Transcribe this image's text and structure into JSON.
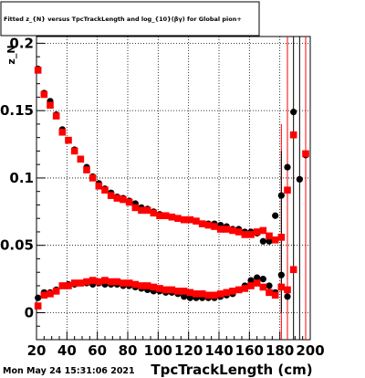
{
  "title": "Fitted  z_{N} versus TpcTrackLength and log_{10}(βγ) for Global pion+",
  "timestamp": "Mon May 24 15:31:06 2021",
  "chart_data": {
    "type": "scatter",
    "xlabel": "TpcTrackLength (cm)",
    "ylabel": "z_N",
    "xlim": [
      20,
      200
    ],
    "ylim": [
      -0.02,
      0.205
    ],
    "x_ticks": [
      "20",
      "40",
      "60",
      "80",
      "100",
      "120",
      "140",
      "160",
      "180",
      "200"
    ],
    "y_ticks": [
      "0",
      "0.05",
      "0.1",
      "0.15",
      "0.2"
    ],
    "x_tick_values": [
      20,
      40,
      60,
      80,
      100,
      120,
      140,
      160,
      180,
      200
    ],
    "y_tick_values": [
      0,
      0.05,
      0.1,
      0.15,
      0.2
    ],
    "grid": true,
    "series": [
      {
        "color": "#000000",
        "points": [
          [
            21,
            0.181
          ],
          [
            25,
            0.163
          ],
          [
            29,
            0.157
          ],
          [
            33,
            0.147
          ],
          [
            37,
            0.136
          ],
          [
            41,
            0.128
          ],
          [
            45,
            0.121
          ],
          [
            49,
            0.114
          ],
          [
            53,
            0.108
          ],
          [
            57,
            0.101
          ],
          [
            61,
            0.096
          ],
          [
            65,
            0.092
          ],
          [
            69,
            0.089
          ],
          [
            73,
            0.086
          ],
          [
            77,
            0.085
          ],
          [
            81,
            0.083
          ],
          [
            85,
            0.081
          ],
          [
            89,
            0.078
          ],
          [
            93,
            0.077
          ],
          [
            97,
            0.075
          ],
          [
            101,
            0.073
          ],
          [
            105,
            0.072
          ],
          [
            109,
            0.071
          ],
          [
            113,
            0.07
          ],
          [
            117,
            0.069
          ],
          [
            121,
            0.069
          ],
          [
            125,
            0.068
          ],
          [
            129,
            0.066
          ],
          [
            133,
            0.066
          ],
          [
            137,
            0.066
          ],
          [
            141,
            0.065
          ],
          [
            145,
            0.064
          ],
          [
            149,
            0.062
          ],
          [
            153,
            0.062
          ],
          [
            157,
            0.06
          ],
          [
            161,
            0.06
          ],
          [
            165,
            0.059
          ],
          [
            169,
            0.053
          ],
          [
            173,
            0.053
          ],
          [
            177,
            0.072
          ],
          [
            181,
            0.087
          ],
          [
            185,
            0.108
          ],
          [
            189,
            0.149
          ],
          [
            193,
            0.099
          ],
          [
            197,
            0.117
          ],
          [
            21,
            0.011
          ],
          [
            25,
            0.015
          ],
          [
            29,
            0.015
          ],
          [
            33,
            0.017
          ],
          [
            37,
            0.02
          ],
          [
            41,
            0.021
          ],
          [
            45,
            0.021
          ],
          [
            49,
            0.022
          ],
          [
            53,
            0.022
          ],
          [
            57,
            0.021
          ],
          [
            61,
            0.022
          ],
          [
            65,
            0.021
          ],
          [
            69,
            0.021
          ],
          [
            73,
            0.021
          ],
          [
            77,
            0.02
          ],
          [
            81,
            0.02
          ],
          [
            85,
            0.019
          ],
          [
            89,
            0.018
          ],
          [
            93,
            0.017
          ],
          [
            97,
            0.016
          ],
          [
            101,
            0.016
          ],
          [
            105,
            0.015
          ],
          [
            109,
            0.015
          ],
          [
            113,
            0.014
          ],
          [
            117,
            0.012
          ],
          [
            121,
            0.011
          ],
          [
            125,
            0.011
          ],
          [
            129,
            0.011
          ],
          [
            133,
            0.011
          ],
          [
            137,
            0.011
          ],
          [
            141,
            0.012
          ],
          [
            145,
            0.013
          ],
          [
            149,
            0.014
          ],
          [
            153,
            0.017
          ],
          [
            157,
            0.02
          ],
          [
            161,
            0.024
          ],
          [
            165,
            0.026
          ],
          [
            169,
            0.025
          ],
          [
            173,
            0.02
          ],
          [
            177,
            0.015
          ],
          [
            181,
            0.028
          ],
          [
            185,
            0.012
          ]
        ]
      },
      {
        "color": "#ff0000",
        "points": [
          [
            21,
            0.18
          ],
          [
            25,
            0.162
          ],
          [
            29,
            0.154
          ],
          [
            33,
            0.146
          ],
          [
            37,
            0.134
          ],
          [
            41,
            0.128
          ],
          [
            45,
            0.12
          ],
          [
            49,
            0.114
          ],
          [
            53,
            0.106
          ],
          [
            57,
            0.1
          ],
          [
            61,
            0.094
          ],
          [
            65,
            0.091
          ],
          [
            69,
            0.087
          ],
          [
            73,
            0.085
          ],
          [
            77,
            0.084
          ],
          [
            81,
            0.082
          ],
          [
            85,
            0.078
          ],
          [
            89,
            0.076
          ],
          [
            93,
            0.076
          ],
          [
            97,
            0.074
          ],
          [
            101,
            0.072
          ],
          [
            105,
            0.072
          ],
          [
            109,
            0.071
          ],
          [
            113,
            0.07
          ],
          [
            117,
            0.069
          ],
          [
            121,
            0.069
          ],
          [
            125,
            0.068
          ],
          [
            129,
            0.066
          ],
          [
            133,
            0.065
          ],
          [
            137,
            0.064
          ],
          [
            141,
            0.062
          ],
          [
            145,
            0.062
          ],
          [
            149,
            0.061
          ],
          [
            153,
            0.06
          ],
          [
            157,
            0.058
          ],
          [
            161,
            0.058
          ],
          [
            165,
            0.06
          ],
          [
            169,
            0.061
          ],
          [
            173,
            0.057
          ],
          [
            177,
            0.054
          ],
          [
            181,
            0.056
          ],
          [
            185,
            0.091
          ],
          [
            189,
            0.132
          ],
          [
            197,
            0.118
          ],
          [
            21,
            0.005
          ],
          [
            25,
            0.013
          ],
          [
            29,
            0.014
          ],
          [
            33,
            0.016
          ],
          [
            37,
            0.02
          ],
          [
            41,
            0.02
          ],
          [
            45,
            0.022
          ],
          [
            49,
            0.022
          ],
          [
            53,
            0.023
          ],
          [
            57,
            0.024
          ],
          [
            61,
            0.023
          ],
          [
            65,
            0.024
          ],
          [
            69,
            0.023
          ],
          [
            73,
            0.023
          ],
          [
            77,
            0.022
          ],
          [
            81,
            0.022
          ],
          [
            85,
            0.021
          ],
          [
            89,
            0.02
          ],
          [
            93,
            0.02
          ],
          [
            97,
            0.019
          ],
          [
            101,
            0.018
          ],
          [
            105,
            0.017
          ],
          [
            109,
            0.017
          ],
          [
            113,
            0.016
          ],
          [
            117,
            0.016
          ],
          [
            121,
            0.015
          ],
          [
            125,
            0.014
          ],
          [
            129,
            0.014
          ],
          [
            133,
            0.013
          ],
          [
            137,
            0.013
          ],
          [
            141,
            0.014
          ],
          [
            145,
            0.015
          ],
          [
            149,
            0.016
          ],
          [
            153,
            0.017
          ],
          [
            157,
            0.018
          ],
          [
            161,
            0.02
          ],
          [
            165,
            0.022
          ],
          [
            169,
            0.019
          ],
          [
            173,
            0.015
          ],
          [
            177,
            0.013
          ],
          [
            181,
            0.019
          ],
          [
            185,
            0.017
          ],
          [
            189,
            0.032
          ]
        ]
      }
    ],
    "error_bars": [
      {
        "x": 185,
        "lo": -0.02,
        "hi": 0.205,
        "color": "#ff0000"
      },
      {
        "x": 189,
        "lo": -0.02,
        "hi": 0.205,
        "color": "#000000"
      },
      {
        "x": 193,
        "lo": -0.02,
        "hi": 0.205,
        "color": "#000000"
      },
      {
        "x": 197,
        "lo": -0.02,
        "hi": 0.205,
        "color": "#ff0000"
      },
      {
        "x": 181,
        "lo": -0.02,
        "hi": 0.14,
        "color": "#ff0000"
      },
      {
        "x": 181,
        "lo": 0.0,
        "hi": 0.12,
        "color": "#000000"
      }
    ]
  }
}
